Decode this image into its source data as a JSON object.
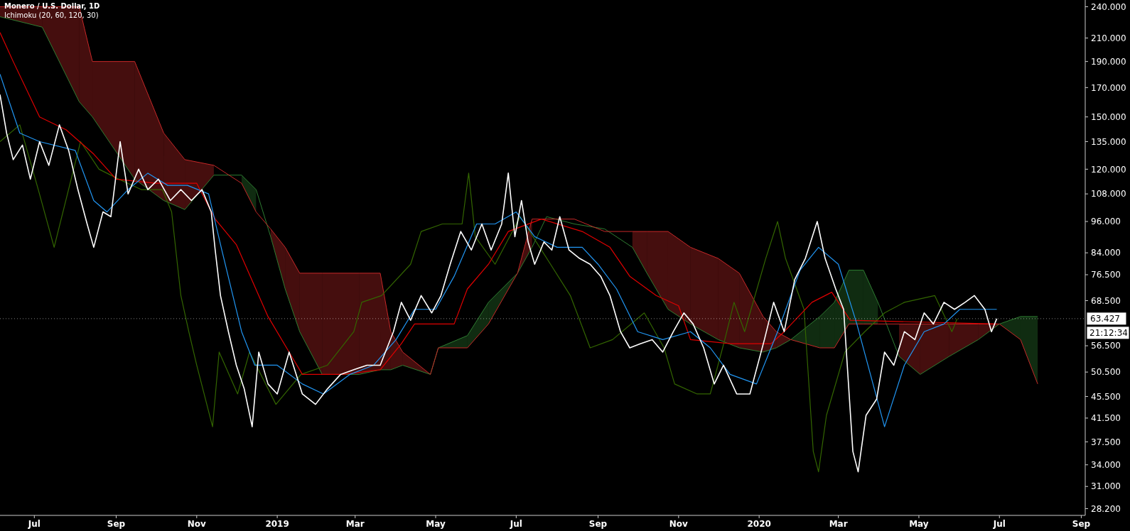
{
  "chart_data": {
    "type": "line",
    "title": "Monero / U.S. Dollar, 1D",
    "subtitle": "Ichimoku (20, 60, 120, 30)",
    "log": true,
    "grid": false,
    "xlim": [
      "2018-06-05",
      "2020-09-04"
    ],
    "xticks": [
      {
        "value": "2018-07-01",
        "label": "Jul"
      },
      {
        "value": "2018-09-01",
        "label": "Sep"
      },
      {
        "value": "2018-11-01",
        "label": "Nov"
      },
      {
        "value": "2019-01-01",
        "label": "2019"
      },
      {
        "value": "2019-03-01",
        "label": "Mar"
      },
      {
        "value": "2019-05-01",
        "label": "May"
      },
      {
        "value": "2019-07-01",
        "label": "Jul"
      },
      {
        "value": "2019-09-01",
        "label": "Sep"
      },
      {
        "value": "2019-11-01",
        "label": "Nov"
      },
      {
        "value": "2020-01-01",
        "label": "2020"
      },
      {
        "value": "2020-03-01",
        "label": "Mar"
      },
      {
        "value": "2020-05-01",
        "label": "May"
      },
      {
        "value": "2020-07-01",
        "label": "Jul"
      },
      {
        "value": "2020-09-01",
        "label": "Sep"
      }
    ],
    "ylim": [
      27.4,
      247
    ],
    "yticks": [
      {
        "value": 240,
        "label": "240.000"
      },
      {
        "value": 210,
        "label": "210.000"
      },
      {
        "value": 190,
        "label": "190.000"
      },
      {
        "value": 170,
        "label": "170.000"
      },
      {
        "value": 150,
        "label": "150.000"
      },
      {
        "value": 135,
        "label": "135.000"
      },
      {
        "value": 120,
        "label": "120.000"
      },
      {
        "value": 108,
        "label": "108.000"
      },
      {
        "value": 96,
        "label": "96.000"
      },
      {
        "value": 84,
        "label": "84.000"
      },
      {
        "value": 76.5,
        "label": "76.500"
      },
      {
        "value": 68.5,
        "label": "68.500"
      },
      {
        "value": 56.5,
        "label": "56.500"
      },
      {
        "value": 50.5,
        "label": "50.500"
      },
      {
        "value": 45.5,
        "label": "45.500"
      },
      {
        "value": 41.5,
        "label": "41.500"
      },
      {
        "value": 37.5,
        "label": "37.500"
      },
      {
        "value": 34,
        "label": "34.000"
      },
      {
        "value": 31,
        "label": "31.000"
      },
      {
        "value": 28.2,
        "label": "28.200"
      }
    ],
    "ref_lines": [
      {
        "axis": "y",
        "value": 63.427,
        "label": "63.427",
        "color": "#ffffff",
        "line_style": "dotted"
      }
    ],
    "annotations": [
      "21:12:34"
    ],
    "series": [
      {
        "color": "#2e7d32",
        "x": [
          "2018-06-05",
          "2018-07-07",
          "2018-08-04",
          "2018-08-14",
          "2018-09-15",
          "2018-10-07",
          "2018-10-23",
          "2018-11-14",
          "2018-12-05",
          "2018-12-16",
          "2018-12-27",
          "2019-01-07",
          "2019-01-18",
          "2019-02-04",
          "2019-03-04",
          "2019-03-20",
          "2019-03-28",
          "2019-04-06",
          "2019-04-27",
          "2019-05-03",
          "2019-05-25",
          "2019-06-10",
          "2019-07-02",
          "2019-07-13",
          "2019-07-24",
          "2019-08-14",
          "2019-09-06",
          "2019-09-27",
          "2019-10-08",
          "2019-10-24",
          "2019-11-10",
          "2019-12-01",
          "2019-12-17",
          "2020-01-04",
          "2020-01-14",
          "2020-01-25",
          "2020-02-16",
          "2020-02-27",
          "2020-03-09",
          "2020-03-20",
          "2020-03-31",
          "2020-04-16",
          "2020-05-02",
          "2020-05-24",
          "2020-06-15",
          "2020-07-01",
          "2020-07-17",
          "2020-07-30"
        ],
        "values": [
          230,
          220,
          160,
          150,
          115,
          105,
          101,
          117,
          117,
          110,
          90,
          72,
          60,
          50,
          50,
          51,
          51,
          52,
          50,
          56,
          59,
          68,
          77,
          86,
          98,
          95,
          93,
          86,
          77,
          66,
          62,
          58,
          56,
          55,
          56,
          58,
          64,
          68,
          78,
          78,
          68,
          54,
          50,
          54,
          58,
          62,
          64,
          64
        ],
        "lower": [
          null,
          null,
          null,
          null,
          null,
          null,
          null,
          null,
          113,
          100,
          null,
          null,
          null,
          null,
          null,
          null,
          null,
          null,
          null,
          56,
          56,
          62,
          77,
          null,
          null,
          null,
          null,
          null,
          null,
          null,
          null,
          null,
          null,
          null,
          null,
          58,
          56,
          56,
          62,
          62,
          62,
          null,
          null,
          null,
          null,
          62,
          58,
          48
        ],
        "upper": [
          null,
          null,
          null,
          null,
          null,
          null,
          null,
          null,
          117,
          110,
          null,
          null,
          null,
          null,
          null,
          null,
          null,
          null,
          null,
          56,
          59,
          68,
          77,
          null,
          null,
          null,
          null,
          null,
          null,
          null,
          null,
          null,
          null,
          null,
          null,
          58,
          64,
          68,
          78,
          78,
          68,
          null,
          null,
          null,
          null,
          62,
          64,
          64
        ]
      },
      {
        "color": "#c62828",
        "x": [
          "2018-06-05",
          "2018-07-07",
          "2018-08-04",
          "2018-08-14",
          "2018-09-15",
          "2018-10-07",
          "2018-10-23",
          "2018-11-14",
          "2018-12-05",
          "2018-12-16",
          "2018-12-27",
          "2019-01-07",
          "2019-01-18",
          "2019-02-04",
          "2019-03-04",
          "2019-03-20",
          "2019-03-28",
          "2019-04-06",
          "2019-04-27",
          "2019-05-03",
          "2019-05-25",
          "2019-06-10",
          "2019-07-02",
          "2019-07-13",
          "2019-07-24",
          "2019-08-14",
          "2019-09-06",
          "2019-09-27",
          "2019-10-08",
          "2019-10-24",
          "2019-11-10",
          "2019-12-01",
          "2019-12-17",
          "2020-01-04",
          "2020-01-14",
          "2020-01-25",
          "2020-02-16",
          "2020-02-27",
          "2020-03-09",
          "2020-03-20",
          "2020-03-31",
          "2020-04-16",
          "2020-05-02",
          "2020-05-24",
          "2020-06-15",
          "2020-07-01",
          "2020-07-17",
          "2020-07-30"
        ],
        "values": [
          240,
          240,
          240,
          190,
          190,
          140,
          125,
          122,
          113,
          100,
          93,
          86,
          77,
          77,
          77,
          77,
          60,
          55,
          50,
          56,
          56,
          62,
          77,
          97,
          97,
          97,
          92,
          92,
          92,
          92,
          86,
          82,
          77,
          64,
          60,
          58,
          56,
          56,
          62,
          62,
          62,
          62,
          62,
          62,
          62,
          62,
          58,
          48
        ],
        "lower": [
          230,
          220,
          160,
          150,
          115,
          105,
          101,
          117,
          null,
          null,
          90,
          72,
          60,
          50,
          50,
          51,
          51,
          52,
          50,
          null,
          null,
          null,
          77,
          86,
          null,
          null,
          null,
          86,
          77,
          66,
          62,
          58,
          56,
          55,
          56,
          58,
          null,
          null,
          null,
          null,
          null,
          54,
          50,
          54,
          58,
          62,
          null,
          null
        ],
        "upper": [
          240,
          240,
          240,
          190,
          190,
          140,
          125,
          122,
          null,
          null,
          93,
          86,
          77,
          77,
          77,
          77,
          60,
          55,
          50,
          null,
          null,
          null,
          77,
          97,
          null,
          null,
          null,
          92,
          92,
          92,
          86,
          82,
          77,
          64,
          60,
          58,
          null,
          null,
          null,
          null,
          null,
          62,
          62,
          62,
          62,
          62,
          null,
          null
        ]
      },
      {
        "color": "#336600",
        "x": [
          "2018-06-05",
          "2018-06-20",
          "2018-07-04",
          "2018-07-16",
          "2018-08-05",
          "2018-08-19",
          "2018-09-03",
          "2018-09-20",
          "2018-10-06",
          "2018-10-13",
          "2018-10-20",
          "2018-10-26",
          "2018-11-01",
          "2018-11-13",
          "2018-11-18",
          "2018-12-02",
          "2018-12-11",
          "2018-12-31",
          "2019-01-19",
          "2019-02-08",
          "2019-02-28",
          "2019-03-06",
          "2019-03-21",
          "2019-04-12",
          "2019-04-20",
          "2019-05-06",
          "2019-05-21",
          "2019-05-26",
          "2019-05-31",
          "2019-06-15",
          "2019-07-04",
          "2019-07-27",
          "2019-08-11",
          "2019-08-26",
          "2019-09-12",
          "2019-10-06",
          "2019-10-21",
          "2019-10-29",
          "2019-11-15",
          "2019-11-25",
          "2019-12-06",
          "2019-12-13",
          "2019-12-21",
          "2020-01-06",
          "2020-01-15",
          "2020-01-21",
          "2020-02-04",
          "2020-02-11",
          "2020-02-15",
          "2020-02-21",
          "2020-03-06",
          "2020-03-21",
          "2020-04-05",
          "2020-04-20",
          "2020-05-13",
          "2020-05-26",
          "2020-05-30"
        ],
        "values": [
          135,
          145,
          110,
          86,
          135,
          120,
          115,
          110,
          110,
          100,
          70,
          60,
          52,
          40,
          55,
          46,
          55,
          44,
          50,
          52,
          60,
          68,
          70,
          80,
          92,
          95,
          95,
          118,
          90,
          80,
          98,
          80,
          70,
          56,
          58,
          65,
          56,
          48,
          46,
          46,
          58,
          68,
          60,
          82,
          96,
          82,
          66,
          36,
          33,
          42,
          55,
          60,
          65,
          68,
          70,
          60,
          63.4
        ]
      },
      {
        "color": "#e00000",
        "x": [
          "2018-06-05",
          "2018-06-15",
          "2018-07-05",
          "2018-07-25",
          "2018-08-15",
          "2018-09-01",
          "2018-10-01",
          "2018-11-01",
          "2018-11-15",
          "2018-12-01",
          "2018-12-25",
          "2019-01-10",
          "2019-01-20",
          "2019-02-20",
          "2019-03-20",
          "2019-04-05",
          "2019-04-15",
          "2019-05-15",
          "2019-05-25",
          "2019-06-10",
          "2019-06-25",
          "2019-07-20",
          "2019-08-20",
          "2019-09-10",
          "2019-09-25",
          "2019-10-15",
          "2019-11-01",
          "2019-11-10",
          "2019-12-10",
          "2020-01-10",
          "2020-01-20",
          "2020-02-10",
          "2020-02-25",
          "2020-03-10",
          "2020-06-29"
        ],
        "values": [
          215,
          190,
          150,
          142,
          128,
          115,
          113,
          113,
          97,
          87,
          64,
          55,
          50,
          50,
          51,
          57,
          62,
          62,
          72,
          80,
          92,
          97,
          92,
          86,
          76,
          70,
          67,
          58,
          57,
          57,
          60,
          68,
          71,
          63,
          62
        ]
      },
      {
        "color": "#2196f3",
        "x": [
          "2018-06-05",
          "2018-06-20",
          "2018-07-05",
          "2018-08-01",
          "2018-08-15",
          "2018-08-25",
          "2018-09-10",
          "2018-09-25",
          "2018-10-10",
          "2018-10-25",
          "2018-11-10",
          "2018-11-20",
          "2018-12-05",
          "2018-12-15",
          "2019-01-01",
          "2019-01-20",
          "2019-02-05",
          "2019-02-25",
          "2019-03-15",
          "2019-04-01",
          "2019-04-15",
          "2019-05-01",
          "2019-05-15",
          "2019-06-01",
          "2019-06-15",
          "2019-07-01",
          "2019-07-15",
          "2019-08-01",
          "2019-08-20",
          "2019-09-01",
          "2019-09-15",
          "2019-10-01",
          "2019-10-20",
          "2019-11-10",
          "2019-11-25",
          "2019-12-10",
          "2019-12-30",
          "2020-01-15",
          "2020-02-01",
          "2020-02-15",
          "2020-03-01",
          "2020-03-15",
          "2020-04-05",
          "2020-04-20",
          "2020-05-05",
          "2020-05-20",
          "2020-06-01",
          "2020-06-29"
        ],
        "values": [
          180,
          140,
          135,
          130,
          105,
          100,
          110,
          118,
          112,
          112,
          108,
          85,
          60,
          52,
          52,
          48,
          46,
          50,
          52,
          58,
          66,
          66,
          76,
          95,
          95,
          100,
          90,
          86,
          86,
          80,
          72,
          60,
          58,
          60,
          56,
          50,
          48,
          60,
          78,
          86,
          80,
          62,
          40,
          52,
          60,
          62,
          66,
          66
        ]
      },
      {
        "color": "#ffffff",
        "x": [
          "2018-06-05",
          "2018-06-10",
          "2018-06-15",
          "2018-06-22",
          "2018-06-28",
          "2018-07-05",
          "2018-07-12",
          "2018-07-20",
          "2018-07-27",
          "2018-08-03",
          "2018-08-10",
          "2018-08-15",
          "2018-08-22",
          "2018-08-28",
          "2018-09-04",
          "2018-09-10",
          "2018-09-18",
          "2018-09-25",
          "2018-10-03",
          "2018-10-12",
          "2018-10-20",
          "2018-10-28",
          "2018-11-05",
          "2018-11-12",
          "2018-11-15",
          "2018-11-19",
          "2018-11-25",
          "2018-12-01",
          "2018-12-07",
          "2018-12-13",
          "2018-12-18",
          "2018-12-25",
          "2019-01-01",
          "2019-01-10",
          "2019-01-20",
          "2019-01-30",
          "2019-02-08",
          "2019-02-18",
          "2019-02-28",
          "2019-03-10",
          "2019-03-20",
          "2019-03-30",
          "2019-04-05",
          "2019-04-12",
          "2019-04-20",
          "2019-04-28",
          "2019-05-05",
          "2019-05-12",
          "2019-05-20",
          "2019-05-28",
          "2019-06-05",
          "2019-06-12",
          "2019-06-20",
          "2019-06-25",
          "2019-06-30",
          "2019-07-05",
          "2019-07-10",
          "2019-07-15",
          "2019-07-22",
          "2019-07-28",
          "2019-08-03",
          "2019-08-10",
          "2019-08-18",
          "2019-08-26",
          "2019-09-03",
          "2019-09-10",
          "2019-09-18",
          "2019-09-25",
          "2019-10-03",
          "2019-10-12",
          "2019-10-20",
          "2019-10-28",
          "2019-11-05",
          "2019-11-12",
          "2019-11-20",
          "2019-11-28",
          "2019-12-05",
          "2019-12-15",
          "2019-12-25",
          "2020-01-05",
          "2020-01-12",
          "2020-01-20",
          "2020-01-28",
          "2020-02-05",
          "2020-02-14",
          "2020-02-20",
          "2020-02-28",
          "2020-03-05",
          "2020-03-12",
          "2020-03-16",
          "2020-03-22",
          "2020-03-30",
          "2020-04-05",
          "2020-04-12",
          "2020-04-20",
          "2020-04-28",
          "2020-05-05",
          "2020-05-12",
          "2020-05-20",
          "2020-05-28",
          "2020-06-05",
          "2020-06-12",
          "2020-06-20",
          "2020-06-25",
          "2020-06-29"
        ],
        "values": [
          165,
          140,
          125,
          133,
          115,
          135,
          122,
          145,
          130,
          110,
          95,
          86,
          100,
          98,
          135,
          108,
          120,
          110,
          115,
          105,
          110,
          105,
          110,
          100,
          85,
          70,
          60,
          52,
          47,
          40,
          55,
          48,
          46,
          55,
          46,
          44,
          47,
          50,
          51,
          52,
          52,
          60,
          68,
          63,
          70,
          65,
          70,
          80,
          92,
          85,
          95,
          85,
          95,
          118,
          90,
          105,
          88,
          80,
          88,
          85,
          98,
          85,
          82,
          80,
          76,
          70,
          60,
          56,
          57,
          58,
          55,
          60,
          65,
          62,
          56,
          48,
          52,
          46,
          46,
          58,
          68,
          60,
          75,
          82,
          96,
          82,
          72,
          66,
          36,
          33,
          42,
          45,
          55,
          52,
          60,
          58,
          65,
          62,
          68,
          66,
          68,
          70,
          66,
          60,
          63.427
        ]
      }
    ]
  }
}
